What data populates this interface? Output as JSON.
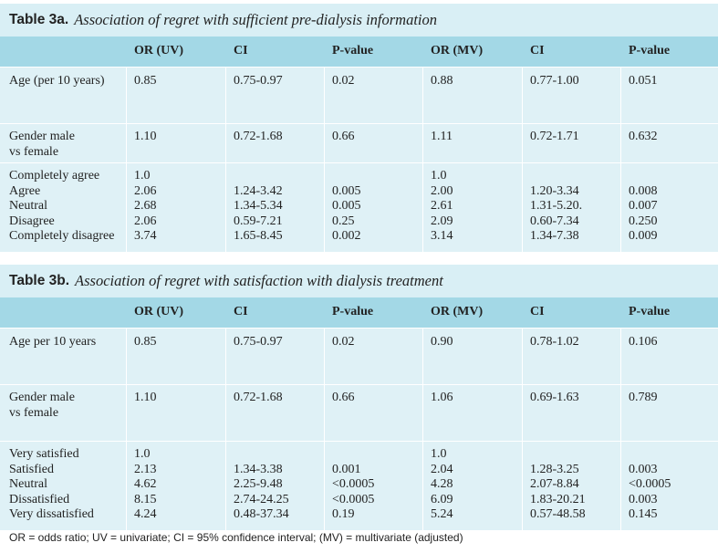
{
  "table3a": {
    "label": "Table 3a.",
    "caption": "Association of regret with sufficient pre-dialysis information",
    "headers": [
      "",
      "OR (UV)",
      "CI",
      "P-value",
      "OR (MV)",
      "CI",
      "P-value"
    ],
    "rows": [
      [
        "Age (per 10 years)",
        "0.85",
        "0.75-0.97",
        "0.02",
        "0.88",
        "0.77-1.00",
        "0.051"
      ],
      [
        "Gender male\nvs female",
        "1.10",
        "0.72-1.68",
        "0.66",
        "1.11",
        "0.72-1.71",
        "0.632"
      ],
      [
        "Completely agree\nAgree\nNeutral\nDisagree\nCompletely disagree",
        "1.0\n2.06\n2.68\n2.06\n3.74",
        "\n1.24-3.42\n1.34-5.34\n0.59-7.21\n1.65-8.45",
        "\n0.005\n0.005\n0.25\n0.002",
        "1.0\n2.00\n2.61\n2.09\n3.14",
        "\n1.20-3.34\n1.31-5.20.\n0.60-7.34\n1.34-7.38",
        "\n0.008\n0.007\n0.250\n0.009"
      ]
    ]
  },
  "table3b": {
    "label": "Table 3b.",
    "caption": "Association of regret with satisfaction with dialysis treatment",
    "headers": [
      "",
      "OR (UV)",
      "CI",
      "P-value",
      "OR (MV)",
      "CI",
      "P-value"
    ],
    "rows": [
      [
        "Age per 10 years",
        "0.85",
        "0.75-0.97",
        "0.02",
        "0.90",
        "0.78-1.02",
        "0.106"
      ],
      [
        "Gender male\nvs female",
        "1.10",
        "0.72-1.68",
        "0.66",
        "1.06",
        "0.69-1.63",
        "0.789"
      ],
      [
        "Very satisfied\nSatisfied\nNeutral\nDissatisfied\nVery dissatisfied",
        "1.0\n2.13\n4.62\n8.15\n4.24",
        "\n1.34-3.38\n2.25-9.48\n2.74-24.25\n0.48-37.34",
        "\n0.001\n<0.0005\n<0.0005\n0.19",
        "1.0\n2.04\n4.28\n6.09\n5.24",
        "\n1.28-3.25\n2.07-8.84\n1.83-20.21\n0.57-48.58",
        "\n0.003\n<0.0005\n0.003\n0.145"
      ]
    ]
  },
  "footnote": "OR = odds ratio; UV = univariate; CI = 95% confidence interval; (MV) = multivariate (adjusted)",
  "colors": {
    "title_bg": "#d9eff5",
    "header_bg": "#a3d8e6",
    "row_bg": "#dff1f6"
  }
}
